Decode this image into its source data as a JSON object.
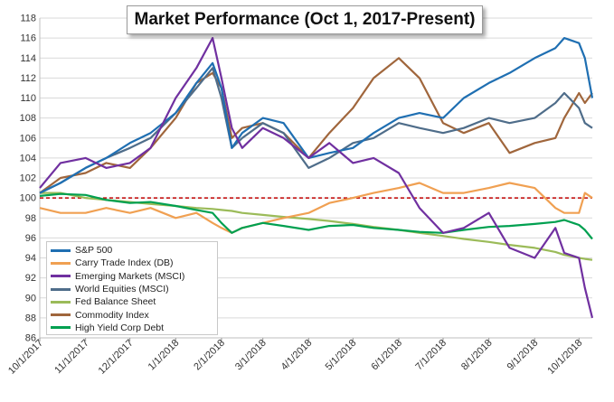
{
  "title": "Market Performance (Oct 1, 2017-Present)",
  "chart_data": {
    "type": "line",
    "title": "Market Performance (Oct 1, 2017-Present)",
    "xlabel": "",
    "ylabel": "",
    "ylim": [
      86,
      118
    ],
    "y_ticks": [
      86,
      88,
      90,
      92,
      94,
      96,
      98,
      100,
      102,
      104,
      106,
      108,
      110,
      112,
      114,
      116,
      118
    ],
    "x_ticks": [
      "10/1/2017",
      "11/1/2017",
      "12/1/2017",
      "1/1/2018",
      "2/1/2018",
      "3/1/2018",
      "4/1/2018",
      "5/1/2018",
      "6/1/2018",
      "7/1/2018",
      "8/1/2018",
      "9/1/2018",
      "10/1/2018"
    ],
    "x_dates": [
      "2017-10-01",
      "2017-10-15",
      "2017-11-01",
      "2017-11-15",
      "2017-12-01",
      "2017-12-15",
      "2018-01-01",
      "2018-01-15",
      "2018-01-26",
      "2018-02-01",
      "2018-02-08",
      "2018-02-15",
      "2018-03-01",
      "2018-03-15",
      "2018-04-01",
      "2018-04-15",
      "2018-05-01",
      "2018-05-15",
      "2018-06-01",
      "2018-06-15",
      "2018-07-01",
      "2018-07-15",
      "2018-08-01",
      "2018-08-15",
      "2018-09-01",
      "2018-09-15",
      "2018-09-21",
      "2018-10-01",
      "2018-10-05",
      "2018-10-10"
    ],
    "reference_line": {
      "y": 100,
      "color": "#c00000",
      "style": "dashed"
    },
    "legend_position": "bottom-left",
    "series": [
      {
        "name": "S&P 500",
        "color": "#1f6fb2",
        "values": [
          100.5,
          101.5,
          103,
          104,
          105.5,
          106.5,
          108.5,
          111.5,
          113.5,
          111,
          105,
          106.5,
          108,
          107.5,
          104,
          104.5,
          105,
          106.5,
          108,
          108.5,
          108,
          110,
          111.5,
          112.5,
          114,
          115,
          116,
          115.5,
          114,
          110
        ]
      },
      {
        "name": "Carry Trade Index (DB)",
        "color": "#f0a052",
        "values": [
          99,
          98.5,
          98.5,
          99,
          98.5,
          99,
          98,
          98.5,
          97.5,
          97,
          96.5,
          97,
          97.5,
          98,
          98.5,
          99.5,
          100,
          100.5,
          101,
          101.5,
          100.5,
          100.5,
          101,
          101.5,
          101,
          99,
          98.5,
          98.5,
          100.5,
          100
        ]
      },
      {
        "name": "Emerging Markets (MSCI)",
        "color": "#7030a0",
        "values": [
          101,
          103.5,
          104,
          103,
          103.5,
          105,
          110,
          113,
          116,
          112,
          107,
          105,
          107,
          106,
          104,
          105.5,
          103.5,
          104,
          102.5,
          99,
          96.5,
          97,
          98.5,
          95,
          94,
          97,
          94.5,
          94,
          91,
          88
        ]
      },
      {
        "name": "World Equities (MSCI)",
        "color": "#4f6d8a",
        "values": [
          100.5,
          101.5,
          103,
          104,
          105,
          106,
          108.5,
          111,
          113,
          110,
          105,
          106,
          107.5,
          106.5,
          103,
          104,
          105.5,
          106,
          107.5,
          107,
          106.5,
          107,
          108,
          107.5,
          108,
          109.5,
          110.5,
          109,
          107.5,
          107
        ]
      },
      {
        "name": "Fed Balance Sheet",
        "color": "#9bbb59",
        "values": [
          100.5,
          100.5,
          100,
          99.8,
          99.6,
          99.4,
          99.2,
          99,
          98.9,
          98.8,
          98.7,
          98.5,
          98.3,
          98.1,
          97.9,
          97.7,
          97.4,
          97.1,
          96.8,
          96.5,
          96.2,
          95.9,
          95.6,
          95.3,
          95,
          94.6,
          94.3,
          94,
          93.9,
          93.8
        ]
      },
      {
        "name": "Commodity Index",
        "color": "#a0663c",
        "values": [
          100.5,
          102,
          102.5,
          103.5,
          103,
          105,
          108,
          111.5,
          112.5,
          111,
          106,
          107,
          107.5,
          106.5,
          104,
          106.5,
          109,
          112,
          114,
          112,
          107.5,
          106.5,
          107.5,
          104.5,
          105.5,
          106,
          108,
          110.5,
          109.5,
          110.5
        ]
      },
      {
        "name": "High Yield Corp Debt",
        "color": "#00a050",
        "values": [
          100.2,
          100.4,
          100.3,
          99.8,
          99.5,
          99.6,
          99.2,
          98.8,
          98.5,
          97.5,
          96.5,
          97,
          97.5,
          97.2,
          96.8,
          97.2,
          97.3,
          97,
          96.8,
          96.6,
          96.5,
          96.8,
          97.1,
          97.2,
          97.4,
          97.6,
          97.8,
          97.3,
          96.8,
          95.9
        ]
      }
    ]
  }
}
